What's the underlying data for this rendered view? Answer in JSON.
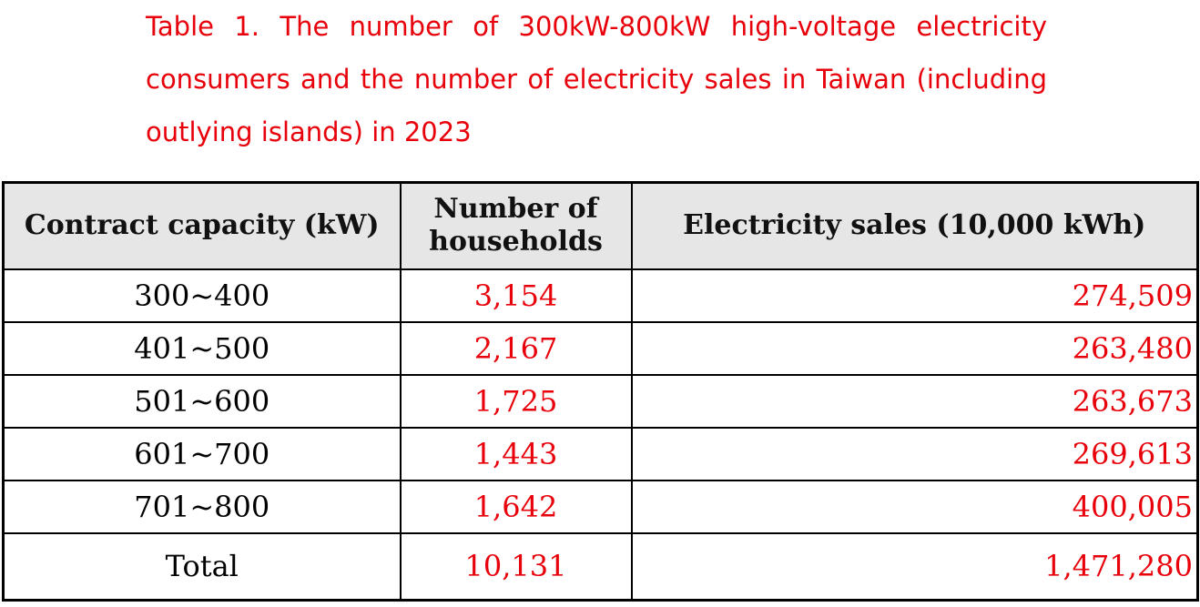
{
  "caption": "Table 1. The number of 300kW-800kW high-voltage electricity consumers and the number of electricity sales in Taiwan (including outlying islands) in 2023",
  "colors": {
    "accent_red": "#e8000b",
    "header_bg": "#e6e6e6",
    "text": "#000000"
  },
  "table": {
    "headers": {
      "capacity": "Contract capacity (kW)",
      "households_line1": "Number of",
      "households_line2": "households",
      "sales": "Electricity sales (10,000 kWh)"
    },
    "rows": [
      {
        "capacity": "300~400",
        "households": "3,154",
        "sales": "274,509"
      },
      {
        "capacity": "401~500",
        "households": "2,167",
        "sales": "263,480"
      },
      {
        "capacity": "501~600",
        "households": "1,725",
        "sales": "263,673"
      },
      {
        "capacity": "601~700",
        "households": "1,443",
        "sales": "269,613"
      },
      {
        "capacity": "701~800",
        "households": "1,642",
        "sales": "400,005"
      }
    ],
    "total": {
      "capacity": "Total",
      "households": "10,131",
      "sales": "1,471,280"
    }
  }
}
